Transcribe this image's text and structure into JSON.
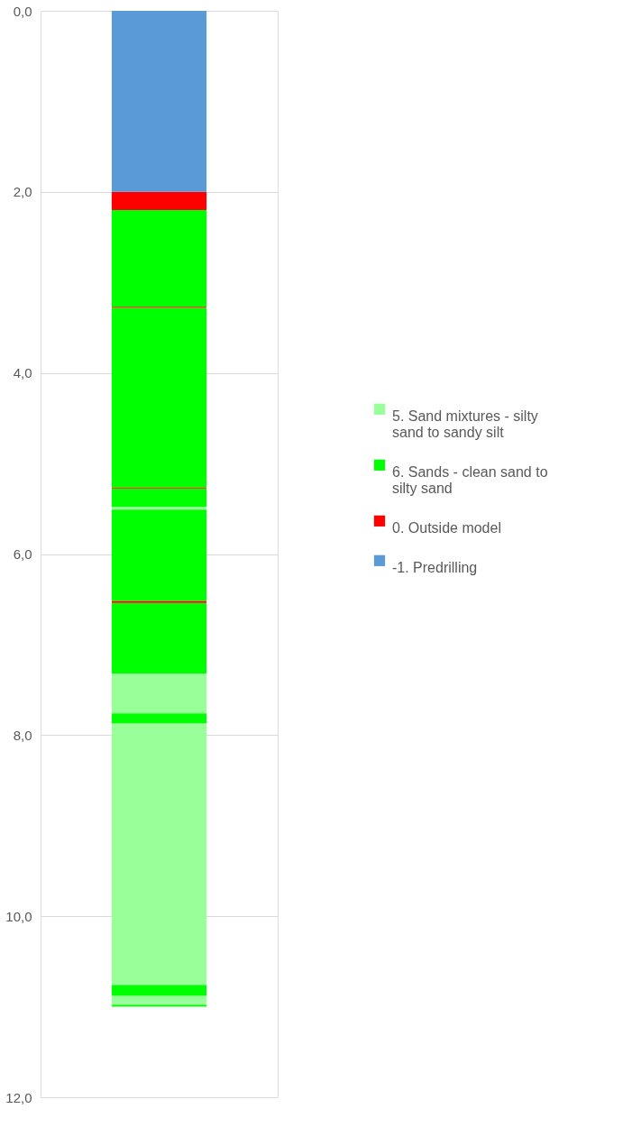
{
  "chart_data": {
    "type": "bar",
    "categories": [
      null
    ],
    "series": [
      {
        "name": "5. Sand mixtures - silty sand to sandy silt",
        "color": "#99ff99",
        "x": [
          null,
          null,
          null,
          null
        ],
        "base": [
          5.48,
          7.32,
          7.87,
          10.88
        ],
        "values": [
          0.03,
          0.44,
          2.89,
          0.1
        ]
      },
      {
        "name": "6. Sands - clean sand to silty sand",
        "color": "#00ff00",
        "x": [
          null,
          null,
          null,
          null,
          null,
          null,
          null,
          null
        ],
        "base": [
          2.2,
          3.28,
          5.28,
          5.51,
          6.54,
          7.76,
          10.76,
          10.98
        ],
        "values": [
          1.07,
          1.99,
          0.2,
          1.01,
          0.78,
          0.11,
          0.12,
          0.02
        ]
      },
      {
        "name": "0. Outside model",
        "color": "#ff0000",
        "x": [
          null,
          null,
          null,
          null
        ],
        "base": [
          2.0,
          3.27,
          5.27,
          6.52
        ],
        "values": [
          0.2,
          0.01,
          0.01,
          0.02
        ]
      },
      {
        "name": "-1. Predrilling",
        "color": "#5b9bd5",
        "x": [
          null
        ],
        "base": [
          0
        ],
        "values": [
          2.0
        ]
      }
    ],
    "ylim": [
      12,
      0
    ],
    "yticks": [
      {
        "value": 0,
        "label": "0,0"
      },
      {
        "value": 2,
        "label": "2,0"
      },
      {
        "value": 4,
        "label": "4,0"
      },
      {
        "value": 6,
        "label": "6,0"
      },
      {
        "value": 8,
        "label": "8,0"
      },
      {
        "value": 10,
        "label": "10,0"
      },
      {
        "value": 12,
        "label": "12,0"
      }
    ],
    "grid": "y",
    "legend": "right",
    "tick_labels": "y"
  }
}
